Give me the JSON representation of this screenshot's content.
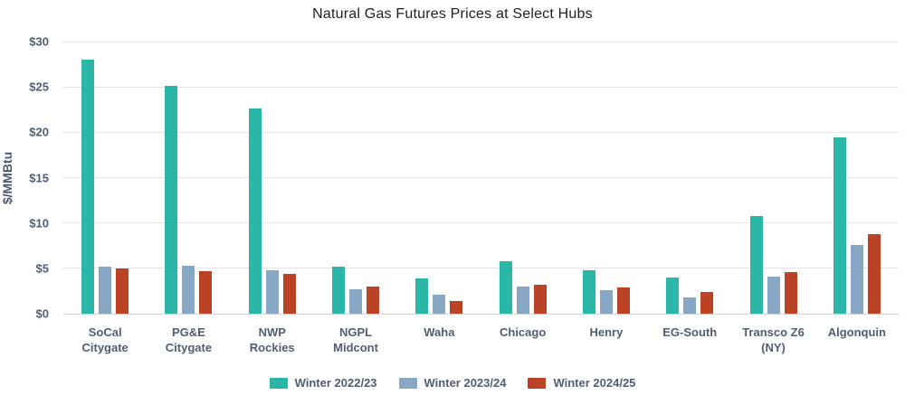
{
  "title": "Natural Gas Futures Prices at Select Hubs",
  "y_axis": {
    "label": "$/MMBtu",
    "tick_labels": [
      "$0",
      "$5",
      "$10",
      "$15",
      "$20",
      "$25",
      "$30"
    ]
  },
  "chart_data": {
    "type": "bar",
    "title": "Natural Gas Futures Prices at Select Hubs",
    "xlabel": "",
    "ylabel": "$/MMBtu",
    "ylim": [
      0,
      30
    ],
    "ytick_step": 5,
    "ytick_labels": [
      "$0",
      "$5",
      "$10",
      "$15",
      "$20",
      "$25",
      "$30"
    ],
    "grid": true,
    "legend_position": "bottom",
    "categories": [
      "SoCal Citygate",
      "PG&E Citygate",
      "NWP Rockies",
      "NGPL Midcont",
      "Waha",
      "Chicago",
      "Henry",
      "EG-South",
      "Transco Z6 (NY)",
      "Algonquin"
    ],
    "series": [
      {
        "name": "Winter 2022/23",
        "color": "#2ab7a8",
        "values": [
          28.0,
          25.1,
          22.6,
          5.2,
          3.9,
          5.8,
          4.8,
          4.0,
          10.8,
          19.4
        ]
      },
      {
        "name": "Winter 2023/24",
        "color": "#87a7c5",
        "values": [
          5.2,
          5.3,
          4.8,
          2.7,
          2.1,
          3.0,
          2.6,
          1.8,
          4.1,
          7.6
        ]
      },
      {
        "name": "Winter 2024/25",
        "color": "#bc4226",
        "values": [
          5.0,
          4.7,
          4.4,
          3.0,
          1.4,
          3.2,
          2.9,
          2.4,
          4.6,
          8.8
        ]
      }
    ]
  },
  "colors": {
    "gridline": "#e2e4e9",
    "zero_line": "#ced2d9",
    "axis_text": "#515d73",
    "title_text": "#1f1f1f"
  }
}
